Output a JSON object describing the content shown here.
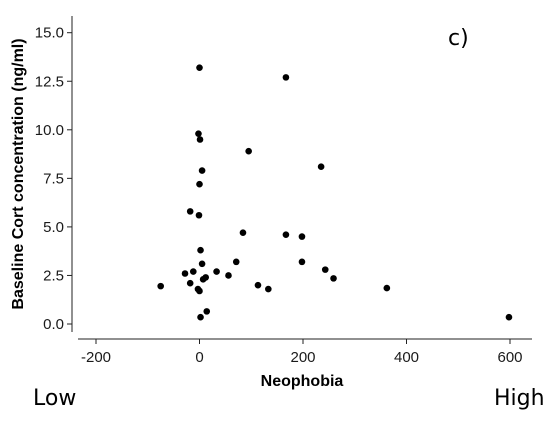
{
  "chart_data": {
    "type": "scatter",
    "panel_label": "c)",
    "xlabel": "Neophobia",
    "ylabel": "Baseline Cort concentration (ng/ml)",
    "xlim": [
      -250,
      630
    ],
    "ylim": [
      -0.8,
      15.8
    ],
    "x_ticks": [
      -200,
      0,
      200,
      400,
      600
    ],
    "x_tick_labels": [
      "-200",
      "0",
      "200",
      "400",
      "600"
    ],
    "y_ticks": [
      0,
      2.5,
      5,
      7.5,
      10,
      12.5,
      15
    ],
    "y_tick_labels": [
      "0.0",
      "2.5",
      "5.0",
      "7.5",
      "10.0",
      "12.5",
      "15.0"
    ],
    "grid": false,
    "points": [
      {
        "x": 0,
        "y": 13.2
      },
      {
        "x": 167,
        "y": 12.7
      },
      {
        "x": -2,
        "y": 9.8
      },
      {
        "x": 1,
        "y": 9.5
      },
      {
        "x": 95,
        "y": 8.9
      },
      {
        "x": 235,
        "y": 8.1
      },
      {
        "x": 5,
        "y": 7.9
      },
      {
        "x": 0,
        "y": 7.2
      },
      {
        "x": -18,
        "y": 5.8
      },
      {
        "x": -1,
        "y": 5.6
      },
      {
        "x": 84,
        "y": 4.7
      },
      {
        "x": 167,
        "y": 4.6
      },
      {
        "x": 198,
        "y": 4.5
      },
      {
        "x": 2,
        "y": 3.8
      },
      {
        "x": 198,
        "y": 3.2
      },
      {
        "x": 71,
        "y": 3.2
      },
      {
        "x": 5,
        "y": 3.1
      },
      {
        "x": 243,
        "y": 2.8
      },
      {
        "x": 33,
        "y": 2.7
      },
      {
        "x": -12,
        "y": 2.7
      },
      {
        "x": -28,
        "y": 2.6
      },
      {
        "x": 56,
        "y": 2.5
      },
      {
        "x": 12,
        "y": 2.4
      },
      {
        "x": 259,
        "y": 2.35
      },
      {
        "x": 7,
        "y": 2.3
      },
      {
        "x": -18,
        "y": 2.1
      },
      {
        "x": -75,
        "y": 1.95
      },
      {
        "x": 113,
        "y": 2.0
      },
      {
        "x": 362,
        "y": 1.85
      },
      {
        "x": 133,
        "y": 1.8
      },
      {
        "x": -3,
        "y": 1.8
      },
      {
        "x": 0,
        "y": 1.7
      },
      {
        "x": 14,
        "y": 0.65
      },
      {
        "x": 2,
        "y": 0.35
      },
      {
        "x": 598,
        "y": 0.35
      }
    ]
  },
  "extremes": {
    "low": "Low",
    "high": "High"
  }
}
